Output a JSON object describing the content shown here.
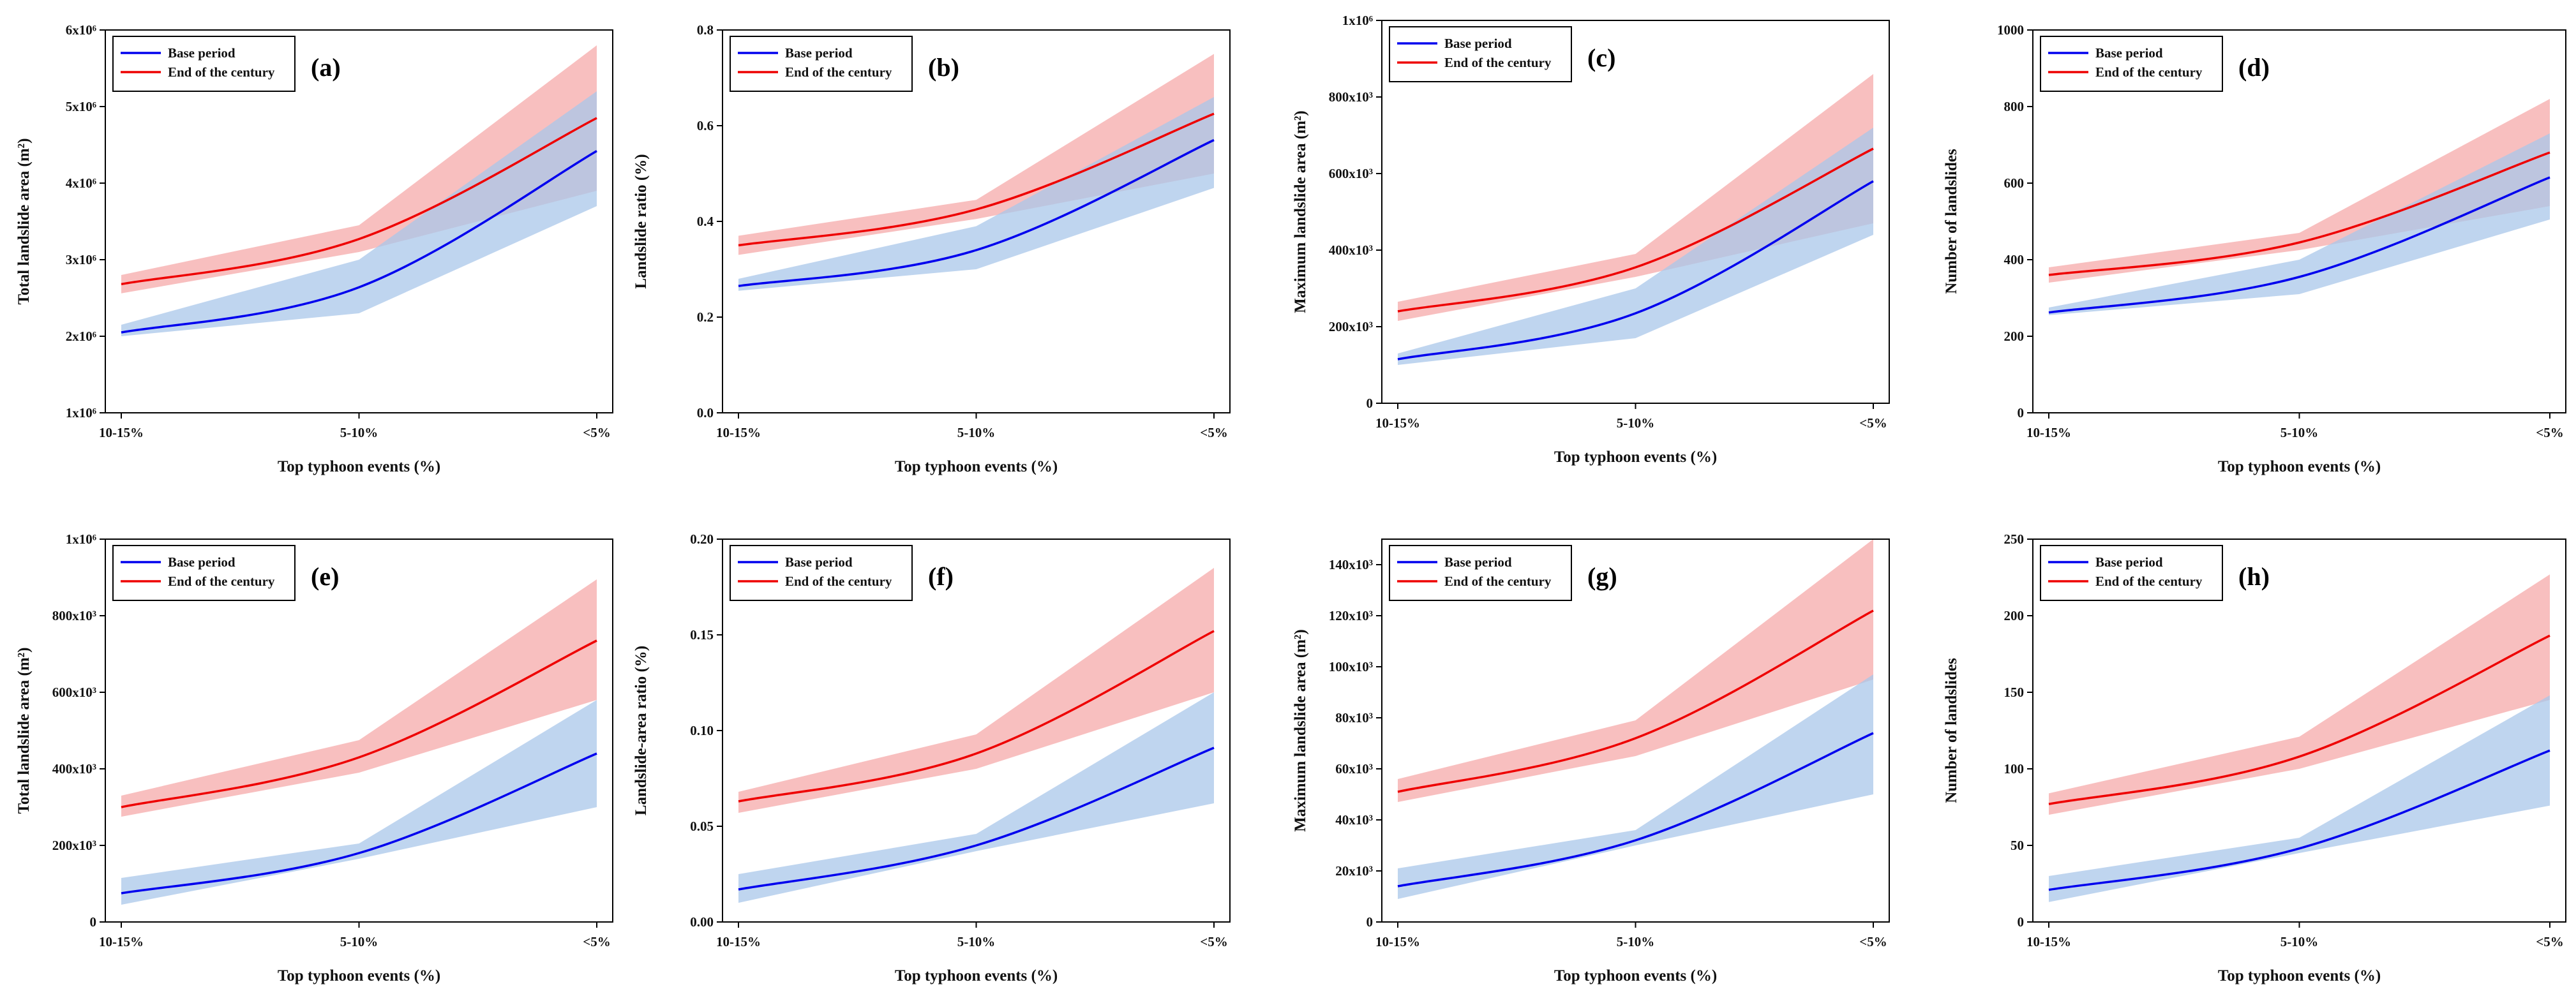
{
  "chart_data": [
    {
      "type": "area",
      "panel_label": "(a)",
      "categories": [
        "10-15%",
        "5-10%",
        "<5%"
      ],
      "xlabel": "Top typhoon events (%)",
      "ylabel": "Total landslide area (m²)",
      "ylim": [
        1000000,
        6000000
      ],
      "yticks": [
        1000000,
        2000000,
        3000000,
        4000000,
        5000000,
        6000000
      ],
      "ytick_labels": [
        "1x10⁶",
        "2x10⁶",
        "3x10⁶",
        "4x10⁶",
        "5x10⁶",
        "6x10⁶"
      ],
      "legend": [
        "Base period",
        "End of the century"
      ],
      "series": [
        {
          "name": "Base period",
          "color": "#0000ee",
          "band_color": "#a9c7ea",
          "values": [
            2050000,
            2640000,
            4420000
          ],
          "lower": [
            2000000,
            2300000,
            3700000
          ],
          "upper": [
            2150000,
            3000000,
            5200000
          ]
        },
        {
          "name": "End of the century",
          "color": "#ee0000",
          "band_color": "#f6aaaa",
          "values": [
            2680000,
            3270000,
            4850000
          ],
          "lower": [
            2560000,
            3100000,
            3900000
          ],
          "upper": [
            2800000,
            3450000,
            5800000
          ]
        }
      ]
    },
    {
      "type": "area",
      "panel_label": "(b)",
      "categories": [
        "10-15%",
        "5-10%",
        "<5%"
      ],
      "xlabel": "Top typhoon events (%)",
      "ylabel": "Landslide ratio (%)",
      "ylim": [
        0,
        0.8
      ],
      "yticks": [
        0,
        0.2,
        0.4,
        0.6,
        0.8
      ],
      "ytick_labels": [
        "0.0",
        "0.2",
        "0.4",
        "0.6",
        "0.8"
      ],
      "legend": [
        "Base period",
        "End of the century"
      ],
      "series": [
        {
          "name": "Base period",
          "color": "#0000ee",
          "band_color": "#a9c7ea",
          "values": [
            0.265,
            0.34,
            0.57
          ],
          "lower": [
            0.255,
            0.3,
            0.47
          ],
          "upper": [
            0.28,
            0.39,
            0.66
          ]
        },
        {
          "name": "End of the century",
          "color": "#ee0000",
          "band_color": "#f6aaaa",
          "values": [
            0.35,
            0.425,
            0.625
          ],
          "lower": [
            0.33,
            0.405,
            0.5
          ],
          "upper": [
            0.37,
            0.445,
            0.75
          ]
        }
      ]
    },
    {
      "type": "area",
      "panel_label": "(c)",
      "categories": [
        "10-15%",
        "5-10%",
        "<5%"
      ],
      "xlabel": "Top typhoon events (%)",
      "ylabel": "Maximum landslide area (m²)",
      "ylim": [
        0,
        1000000
      ],
      "yticks": [
        0,
        200000,
        400000,
        600000,
        800000,
        1000000
      ],
      "ytick_labels": [
        "0",
        "200x10³",
        "400x10³",
        "600x10³",
        "800x10³",
        "1x10⁶"
      ],
      "legend": [
        "Base period",
        "End of the century"
      ],
      "series": [
        {
          "name": "Base period",
          "color": "#0000ee",
          "band_color": "#a9c7ea",
          "values": [
            115000,
            235000,
            580000
          ],
          "lower": [
            100000,
            170000,
            440000
          ],
          "upper": [
            130000,
            300000,
            720000
          ]
        },
        {
          "name": "End of the century",
          "color": "#ee0000",
          "band_color": "#f6aaaa",
          "values": [
            240000,
            355000,
            665000
          ],
          "lower": [
            215000,
            330000,
            470000
          ],
          "upper": [
            265000,
            390000,
            860000
          ]
        }
      ]
    },
    {
      "type": "area",
      "panel_label": "(d)",
      "categories": [
        "10-15%",
        "5-10%",
        "<5%"
      ],
      "xlabel": "Top typhoon events (%)",
      "ylabel": "Number of landslides",
      "ylim": [
        0,
        1000
      ],
      "yticks": [
        0,
        200,
        400,
        600,
        800,
        1000
      ],
      "ytick_labels": [
        "0",
        "200",
        "400",
        "600",
        "800",
        "1000"
      ],
      "legend": [
        "Base period",
        "End of the century"
      ],
      "series": [
        {
          "name": "Base period",
          "color": "#0000ee",
          "band_color": "#a9c7ea",
          "values": [
            262,
            355,
            615
          ],
          "lower": [
            255,
            310,
            505
          ],
          "upper": [
            275,
            400,
            730
          ]
        },
        {
          "name": "End of the century",
          "color": "#ee0000",
          "band_color": "#f6aaaa",
          "values": [
            360,
            445,
            680
          ],
          "lower": [
            340,
            425,
            540
          ],
          "upper": [
            380,
            470,
            820
          ]
        }
      ]
    },
    {
      "type": "area",
      "panel_label": "(e)",
      "categories": [
        "10-15%",
        "5-10%",
        "<5%"
      ],
      "xlabel": "Top typhoon events (%)",
      "ylabel": "Total landslide area (m²)",
      "ylim": [
        0,
        1000000
      ],
      "yticks": [
        0,
        200000,
        400000,
        600000,
        800000,
        1000000
      ],
      "ytick_labels": [
        "0",
        "200x10³",
        "400x10³",
        "600x10³",
        "800x10³",
        "1x10⁶"
      ],
      "legend": [
        "Base period",
        "End of the century"
      ],
      "series": [
        {
          "name": "Base period",
          "color": "#0000ee",
          "band_color": "#a9c7ea",
          "values": [
            75000,
            180000,
            440000
          ],
          "lower": [
            45000,
            165000,
            300000
          ],
          "upper": [
            115000,
            205000,
            580000
          ]
        },
        {
          "name": "End of the century",
          "color": "#ee0000",
          "band_color": "#f6aaaa",
          "values": [
            300000,
            430000,
            735000
          ],
          "lower": [
            275000,
            390000,
            580000
          ],
          "upper": [
            330000,
            475000,
            895000
          ]
        }
      ]
    },
    {
      "type": "area",
      "panel_label": "(f)",
      "categories": [
        "10-15%",
        "5-10%",
        "<5%"
      ],
      "xlabel": "Top typhoon events (%)",
      "ylabel": "Landslide-area ratio (%)",
      "ylim": [
        0,
        0.2
      ],
      "yticks": [
        0,
        0.05,
        0.1,
        0.15,
        0.2
      ],
      "ytick_labels": [
        "0.00",
        "0.05",
        "0.10",
        "0.15",
        "0.20"
      ],
      "legend": [
        "Base period",
        "End of the century"
      ],
      "series": [
        {
          "name": "Base period",
          "color": "#0000ee",
          "band_color": "#a9c7ea",
          "values": [
            0.017,
            0.04,
            0.091
          ],
          "lower": [
            0.01,
            0.037,
            0.062
          ],
          "upper": [
            0.025,
            0.046,
            0.12
          ]
        },
        {
          "name": "End of the century",
          "color": "#ee0000",
          "band_color": "#f6aaaa",
          "values": [
            0.063,
            0.088,
            0.152
          ],
          "lower": [
            0.057,
            0.08,
            0.12
          ],
          "upper": [
            0.068,
            0.098,
            0.185
          ]
        }
      ]
    },
    {
      "type": "area",
      "panel_label": "(g)",
      "categories": [
        "10-15%",
        "5-10%",
        "<5%"
      ],
      "xlabel": "Top typhoon events (%)",
      "ylabel": "Maximum landslide area (m²)",
      "ylim": [
        0,
        150000
      ],
      "yticks": [
        0,
        20000,
        40000,
        60000,
        80000,
        100000,
        120000,
        140000
      ],
      "ytick_labels": [
        "0",
        "20x10³",
        "40x10³",
        "60x10³",
        "80x10³",
        "100x10³",
        "120x10³",
        "140x10³"
      ],
      "legend": [
        "Base period",
        "End of the century"
      ],
      "series": [
        {
          "name": "Base period",
          "color": "#0000ee",
          "band_color": "#a9c7ea",
          "values": [
            14000,
            32000,
            74000
          ],
          "lower": [
            9000,
            30000,
            50000
          ],
          "upper": [
            21000,
            36000,
            97000
          ]
        },
        {
          "name": "End of the century",
          "color": "#ee0000",
          "band_color": "#f6aaaa",
          "values": [
            51000,
            72000,
            122000
          ],
          "lower": [
            47000,
            65000,
            95000
          ],
          "upper": [
            56000,
            79000,
            150000
          ]
        }
      ]
    },
    {
      "type": "area",
      "panel_label": "(h)",
      "categories": [
        "10-15%",
        "5-10%",
        "<5%"
      ],
      "xlabel": "Top typhoon events (%)",
      "ylabel": "Number of landslides",
      "ylim": [
        0,
        250
      ],
      "yticks": [
        0,
        50,
        100,
        150,
        200,
        250
      ],
      "ytick_labels": [
        "0",
        "50",
        "100",
        "150",
        "200",
        "250"
      ],
      "legend": [
        "Base period",
        "End of the century"
      ],
      "series": [
        {
          "name": "Base period",
          "color": "#0000ee",
          "band_color": "#a9c7ea",
          "values": [
            21,
            48,
            112
          ],
          "lower": [
            13,
            45,
            76
          ],
          "upper": [
            30,
            55,
            148
          ]
        },
        {
          "name": "End of the century",
          "color": "#ee0000",
          "band_color": "#f6aaaa",
          "values": [
            77,
            108,
            187
          ],
          "lower": [
            70,
            100,
            145
          ],
          "upper": [
            84,
            121,
            227
          ]
        }
      ]
    }
  ]
}
